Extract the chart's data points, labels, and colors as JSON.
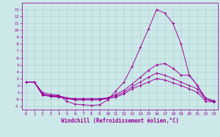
{
  "background_color": "#cce8e8",
  "grid_color": "#aacccc",
  "line_color": "#990099",
  "x_label": "Windchill (Refroidissement éolien,°C)",
  "xlim": [
    -0.5,
    23.5
  ],
  "ylim": [
    -1.5,
    14
  ],
  "yticks": [
    -1,
    0,
    1,
    2,
    3,
    4,
    5,
    6,
    7,
    8,
    9,
    10,
    11,
    12,
    13
  ],
  "xticks": [
    0,
    1,
    2,
    3,
    4,
    5,
    6,
    7,
    8,
    9,
    10,
    11,
    12,
    13,
    14,
    15,
    16,
    17,
    18,
    19,
    20,
    21,
    22,
    23
  ],
  "line1_x": [
    0,
    1,
    2,
    3,
    4,
    5,
    6,
    7,
    8,
    9,
    10,
    11,
    12,
    13,
    14,
    15,
    16,
    17,
    18,
    19,
    20,
    21,
    22,
    23
  ],
  "line1_y": [
    2.5,
    2.5,
    1.0,
    0.7,
    0.6,
    -0.3,
    -0.7,
    -0.8,
    -0.9,
    -0.8,
    -0.1,
    1.2,
    2.5,
    4.8,
    7.5,
    10.2,
    13.0,
    12.5,
    11.0,
    8.0,
    3.5,
    2.0,
    0.0,
    -0.3
  ],
  "line2_x": [
    0,
    1,
    2,
    3,
    4,
    5,
    6,
    7,
    8,
    9,
    10,
    11,
    12,
    13,
    14,
    15,
    16,
    17,
    18,
    19,
    20,
    21,
    22,
    23
  ],
  "line2_y": [
    2.5,
    2.5,
    0.8,
    0.5,
    0.5,
    0.2,
    0.1,
    0.1,
    0.1,
    0.1,
    0.2,
    0.7,
    1.3,
    2.2,
    3.2,
    4.2,
    5.0,
    5.2,
    4.5,
    3.5,
    3.5,
    2.0,
    0.2,
    -0.2
  ],
  "line3_x": [
    0,
    1,
    2,
    3,
    4,
    5,
    6,
    7,
    8,
    9,
    10,
    11,
    12,
    13,
    14,
    15,
    16,
    17,
    18,
    19,
    20,
    21,
    22,
    23
  ],
  "line3_y": [
    2.5,
    2.5,
    0.7,
    0.5,
    0.4,
    0.2,
    0.0,
    0.0,
    0.0,
    0.0,
    0.2,
    0.5,
    1.0,
    1.8,
    2.5,
    3.2,
    3.8,
    3.5,
    3.0,
    2.5,
    2.0,
    1.5,
    0.0,
    -0.3
  ],
  "line4_x": [
    0,
    1,
    2,
    3,
    4,
    5,
    6,
    7,
    8,
    9,
    10,
    11,
    12,
    13,
    14,
    15,
    16,
    17,
    18,
    19,
    20,
    21,
    22,
    23
  ],
  "line4_y": [
    2.5,
    2.5,
    0.6,
    0.4,
    0.3,
    0.1,
    -0.1,
    -0.1,
    -0.1,
    -0.1,
    0.1,
    0.3,
    0.8,
    1.5,
    2.0,
    2.5,
    3.0,
    2.8,
    2.4,
    2.0,
    1.5,
    1.0,
    -0.3,
    -0.4
  ],
  "tick_fontsize": 4.5,
  "xlabel_fontsize": 5.5
}
